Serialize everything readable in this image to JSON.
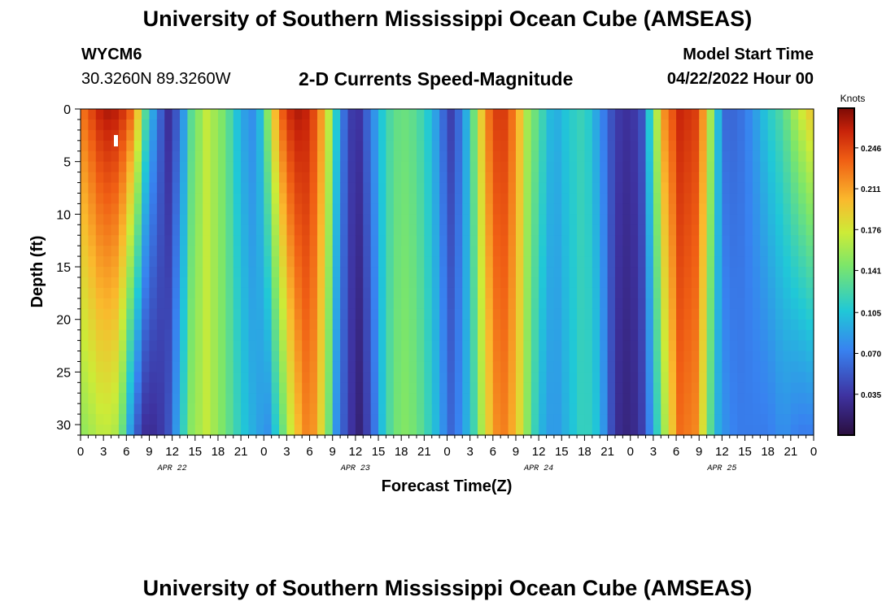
{
  "header": {
    "title": "University of Southern Mississippi Ocean Cube (AMSEAS)",
    "station_id": "WYCM6",
    "coords": "30.3260N  89.3260W",
    "subtitle": "2-D Currents Speed-Magnitude",
    "model_start_label": "Model Start Time",
    "model_start_value": "04/22/2022 Hour 00"
  },
  "footer": {
    "title": "University of Southern Mississippi Ocean Cube (AMSEAS)"
  },
  "chart_data": {
    "type": "heatmap",
    "title": "2-D Currents Speed-Magnitude",
    "xlabel": "Forecast Time(Z)",
    "ylabel": "Depth (ft)",
    "x_hours_range": [
      0,
      96
    ],
    "x_tick_labels": [
      "0",
      "3",
      "6",
      "9",
      "12",
      "15",
      "18",
      "21",
      "0",
      "3",
      "6",
      "9",
      "12",
      "15",
      "18",
      "21",
      "0",
      "3",
      "6",
      "9",
      "12",
      "15",
      "18",
      "21",
      "0",
      "3",
      "6",
      "9",
      "12",
      "15",
      "18",
      "21",
      "0"
    ],
    "date_labels": [
      {
        "hour": 12,
        "label": "APR 22"
      },
      {
        "hour": 36,
        "label": "APR 23"
      },
      {
        "hour": 60,
        "label": "APR 24"
      },
      {
        "hour": 84,
        "label": "APR 25"
      }
    ],
    "ylim": [
      0,
      31
    ],
    "y_ticks": [
      0,
      5,
      10,
      15,
      20,
      25,
      30
    ],
    "colorbar": {
      "label": "Knots",
      "min": 0.0,
      "max": 0.28,
      "ticks": [
        0.035,
        0.07,
        0.105,
        0.141,
        0.176,
        0.211,
        0.246
      ]
    },
    "speed_profile_knots": [
      {
        "hour": 0,
        "surface": 0.225,
        "bottom": 0.15
      },
      {
        "hour": 3,
        "surface": 0.27,
        "bottom": 0.17
      },
      {
        "hour": 5,
        "surface": 0.265,
        "bottom": 0.16
      },
      {
        "hour": 7,
        "surface": 0.23,
        "bottom": 0.06
      },
      {
        "hour": 8.5,
        "surface": 0.13,
        "bottom": 0.03
      },
      {
        "hour": 10,
        "surface": 0.07,
        "bottom": 0.03
      },
      {
        "hour": 11.5,
        "surface": 0.03,
        "bottom": 0.05
      },
      {
        "hour": 13,
        "surface": 0.06,
        "bottom": 0.1
      },
      {
        "hour": 14.5,
        "surface": 0.13,
        "bottom": 0.15
      },
      {
        "hour": 16.5,
        "surface": 0.17,
        "bottom": 0.17
      },
      {
        "hour": 19,
        "surface": 0.14,
        "bottom": 0.14
      },
      {
        "hour": 21,
        "surface": 0.09,
        "bottom": 0.11
      },
      {
        "hour": 23,
        "surface": 0.075,
        "bottom": 0.09
      },
      {
        "hour": 24.5,
        "surface": 0.15,
        "bottom": 0.08
      },
      {
        "hour": 26,
        "surface": 0.23,
        "bottom": 0.12
      },
      {
        "hour": 28,
        "surface": 0.27,
        "bottom": 0.19
      },
      {
        "hour": 30,
        "surface": 0.26,
        "bottom": 0.23
      },
      {
        "hour": 32,
        "surface": 0.2,
        "bottom": 0.17
      },
      {
        "hour": 33.5,
        "surface": 0.11,
        "bottom": 0.08
      },
      {
        "hour": 35,
        "surface": 0.04,
        "bottom": 0.04
      },
      {
        "hour": 36.5,
        "surface": 0.035,
        "bottom": 0.02
      },
      {
        "hour": 38,
        "surface": 0.07,
        "bottom": 0.05
      },
      {
        "hour": 40,
        "surface": 0.12,
        "bottom": 0.12
      },
      {
        "hour": 42,
        "surface": 0.14,
        "bottom": 0.15
      },
      {
        "hour": 44,
        "surface": 0.13,
        "bottom": 0.14
      },
      {
        "hour": 46,
        "surface": 0.1,
        "bottom": 0.11
      },
      {
        "hour": 47.5,
        "surface": 0.06,
        "bottom": 0.08
      },
      {
        "hour": 48.5,
        "surface": 0.04,
        "bottom": 0.06
      },
      {
        "hour": 50,
        "surface": 0.07,
        "bottom": 0.08
      },
      {
        "hour": 51.5,
        "surface": 0.14,
        "bottom": 0.12
      },
      {
        "hour": 53,
        "surface": 0.22,
        "bottom": 0.18
      },
      {
        "hour": 55,
        "surface": 0.26,
        "bottom": 0.23
      },
      {
        "hour": 57,
        "surface": 0.22,
        "bottom": 0.2
      },
      {
        "hour": 58.5,
        "surface": 0.16,
        "bottom": 0.15
      },
      {
        "hour": 60,
        "surface": 0.13,
        "bottom": 0.1
      },
      {
        "hour": 62,
        "surface": 0.09,
        "bottom": 0.08
      },
      {
        "hour": 64,
        "surface": 0.11,
        "bottom": 0.1
      },
      {
        "hour": 66,
        "surface": 0.12,
        "bottom": 0.12
      },
      {
        "hour": 68,
        "surface": 0.08,
        "bottom": 0.1
      },
      {
        "hour": 70,
        "surface": 0.04,
        "bottom": 0.03
      },
      {
        "hour": 72,
        "surface": 0.03,
        "bottom": 0.02
      },
      {
        "hour": 73.5,
        "surface": 0.05,
        "bottom": 0.04
      },
      {
        "hour": 75,
        "surface": 0.14,
        "bottom": 0.09
      },
      {
        "hour": 76.5,
        "surface": 0.22,
        "bottom": 0.16
      },
      {
        "hour": 78.5,
        "surface": 0.26,
        "bottom": 0.23
      },
      {
        "hour": 80.5,
        "surface": 0.25,
        "bottom": 0.22
      },
      {
        "hour": 82,
        "surface": 0.2,
        "bottom": 0.16
      },
      {
        "hour": 83,
        "surface": 0.12,
        "bottom": 0.1
      },
      {
        "hour": 84.5,
        "surface": 0.06,
        "bottom": 0.08
      },
      {
        "hour": 86,
        "surface": 0.06,
        "bottom": 0.07
      },
      {
        "hour": 88,
        "surface": 0.08,
        "bottom": 0.07
      },
      {
        "hour": 90,
        "surface": 0.11,
        "bottom": 0.07
      },
      {
        "hour": 92,
        "surface": 0.13,
        "bottom": 0.08
      },
      {
        "hour": 94,
        "surface": 0.17,
        "bottom": 0.07
      },
      {
        "hour": 96,
        "surface": 0.2,
        "bottom": 0.07
      }
    ]
  }
}
